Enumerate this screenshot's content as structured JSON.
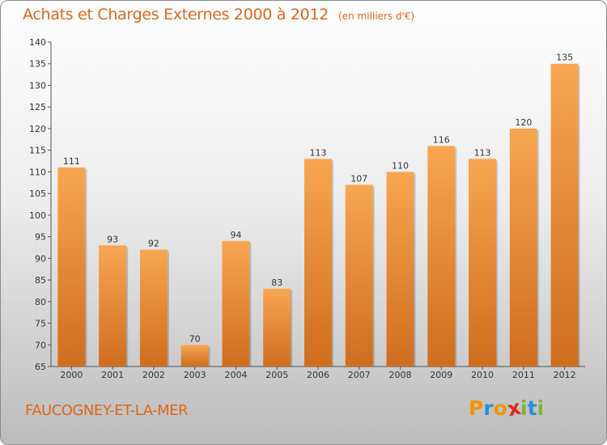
{
  "header": {
    "title": "Achats et Charges Externes 2000 à 2012",
    "unit": "(en milliers d'€)"
  },
  "footer": {
    "town": "FAUCOGNEY-ET-LA-MER"
  },
  "brand": {
    "letters": [
      "P",
      "r",
      "o",
      "x",
      "i",
      "t",
      "i"
    ],
    "colors": [
      "#f29400",
      "#2a8fd6",
      "#f29400",
      "#e2271f",
      "#7cb82f",
      "#2a8fd6",
      "#7cb82f"
    ]
  },
  "colors": {
    "bar_light": "#f8a652",
    "bar_dark": "#cf6d1e",
    "title": "#e0661c"
  },
  "chart_data": {
    "type": "bar",
    "title": "Achats et Charges Externes 2000 à 2012",
    "subtitle": "(en milliers d'€)",
    "categories": [
      "2000",
      "2001",
      "2002",
      "2003",
      "2004",
      "2005",
      "2006",
      "2007",
      "2008",
      "2009",
      "2010",
      "2011",
      "2012"
    ],
    "values": [
      111,
      93,
      92,
      70,
      94,
      83,
      113,
      107,
      110,
      116,
      113,
      120,
      135
    ],
    "ylim": [
      65,
      140
    ],
    "yticks": [
      65,
      70,
      75,
      80,
      85,
      90,
      95,
      100,
      105,
      110,
      115,
      120,
      125,
      130,
      135,
      140
    ],
    "grid": false,
    "legend": "none"
  }
}
